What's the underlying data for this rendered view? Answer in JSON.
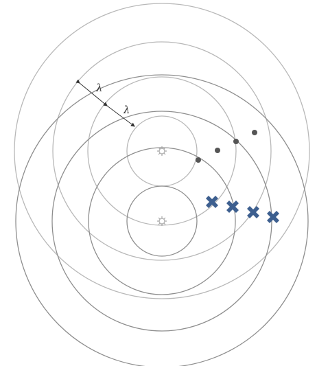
{
  "labels": {
    "wavelength_upper": "λ",
    "wavelength_lower": "λ"
  },
  "colors": {
    "upper_rings": "#b5b5b5",
    "lower_rings": "#8f8f8f",
    "dots": "#555555",
    "crosses": "#3d5f8f",
    "sources": "#aaaaaa"
  },
  "icons": {
    "source": "sun-glyph",
    "constructive_marker": "dot",
    "destructive_marker": "cross"
  }
}
